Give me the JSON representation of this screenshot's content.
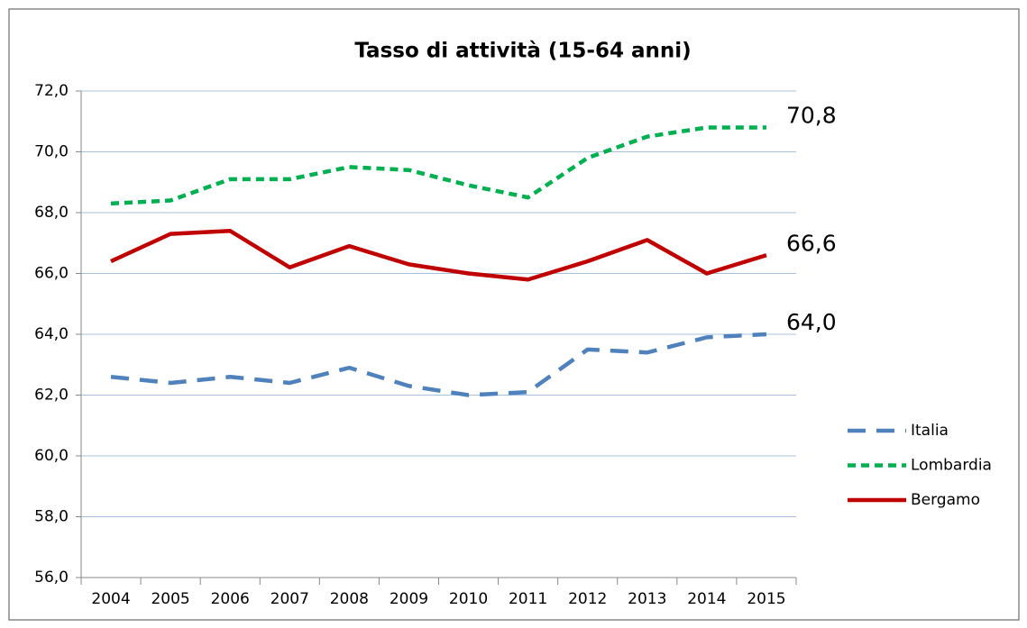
{
  "chart_data": {
    "type": "line",
    "title": "Tasso di attività (15-64 anni)",
    "categories": [
      "2004",
      "2005",
      "2006",
      "2007",
      "2008",
      "2009",
      "2010",
      "2011",
      "2012",
      "2013",
      "2014",
      "2015"
    ],
    "series": [
      {
        "name": "Italia",
        "color": "#4f81bd",
        "dash": "long",
        "values": [
          62.6,
          62.4,
          62.6,
          62.4,
          62.9,
          62.3,
          62.0,
          62.1,
          63.5,
          63.4,
          63.9,
          64.0
        ],
        "value_labels": [
          null,
          null,
          null,
          null,
          null,
          null,
          null,
          null,
          null,
          null,
          null,
          "64,0"
        ]
      },
      {
        "name": "Lombardia",
        "color": "#00b050",
        "dash": "short",
        "values": [
          68.3,
          68.4,
          69.1,
          69.1,
          69.5,
          69.4,
          68.9,
          68.5,
          69.8,
          70.5,
          70.8,
          70.8
        ],
        "value_labels": [
          null,
          null,
          null,
          null,
          null,
          null,
          null,
          null,
          null,
          null,
          null,
          "70,8"
        ]
      },
      {
        "name": "Bergamo",
        "color": "#c00000",
        "dash": "solid",
        "values": [
          66.4,
          67.3,
          67.4,
          66.2,
          66.9,
          66.3,
          66.0,
          65.8,
          66.4,
          67.1,
          66.0,
          66.6
        ],
        "value_labels": [
          null,
          null,
          null,
          null,
          null,
          null,
          null,
          null,
          null,
          null,
          null,
          "66,6"
        ]
      }
    ],
    "ylim": [
      56,
      72
    ],
    "yticks": [
      {
        "value": 56,
        "label": "56,0"
      },
      {
        "value": 58,
        "label": "58,0"
      },
      {
        "value": 60,
        "label": "60,0"
      },
      {
        "value": 62,
        "label": "62,0"
      },
      {
        "value": 64,
        "label": "64,0"
      },
      {
        "value": 66,
        "label": "66,0"
      },
      {
        "value": 68,
        "label": "68,0"
      },
      {
        "value": 70,
        "label": "70,0"
      },
      {
        "value": 72,
        "label": "72,0"
      }
    ],
    "grid": true,
    "legend": "right"
  }
}
